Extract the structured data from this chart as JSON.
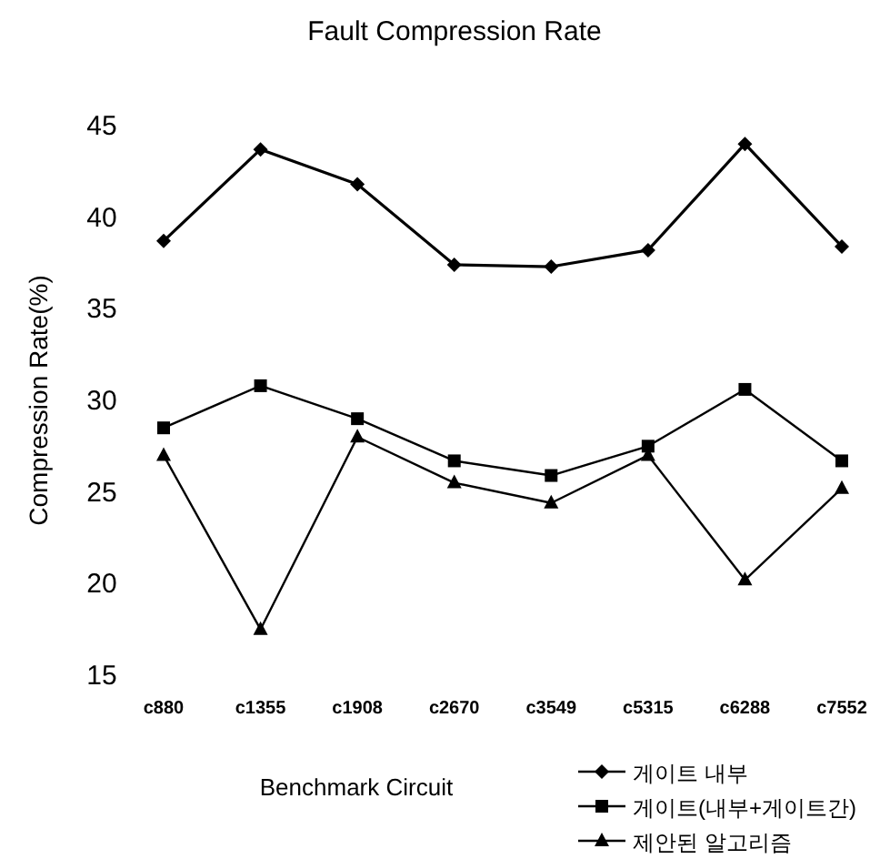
{
  "chart_data": {
    "type": "line",
    "title": "Fault Compression Rate",
    "xlabel": "Benchmark Circuit",
    "ylabel": "Compression Rate(%)",
    "categories": [
      "c880",
      "c1355",
      "c1908",
      "c2670",
      "c3549",
      "c5315",
      "c6288",
      "c7552"
    ],
    "series": [
      {
        "name": "게이트 내부",
        "color": "#000000",
        "marker": "diamond",
        "values": [
          38.7,
          43.7,
          41.8,
          37.4,
          37.3,
          38.2,
          44.0,
          38.4
        ]
      },
      {
        "name": "게이트(내부+게이트간)",
        "color": "#000000",
        "marker": "square",
        "values": [
          28.5,
          30.8,
          29.0,
          26.7,
          25.9,
          27.5,
          30.6,
          26.7
        ]
      },
      {
        "name": "제안된 알고리즘",
        "color": "#000000",
        "marker": "triangle",
        "values": [
          27.0,
          17.5,
          28.0,
          25.5,
          24.4,
          27.0,
          20.2,
          25.2
        ]
      }
    ],
    "ylim": [
      15,
      45
    ],
    "yticks": [
      15,
      20,
      25,
      30,
      35,
      40,
      45
    ],
    "grid": false,
    "legend": "bottom right"
  }
}
